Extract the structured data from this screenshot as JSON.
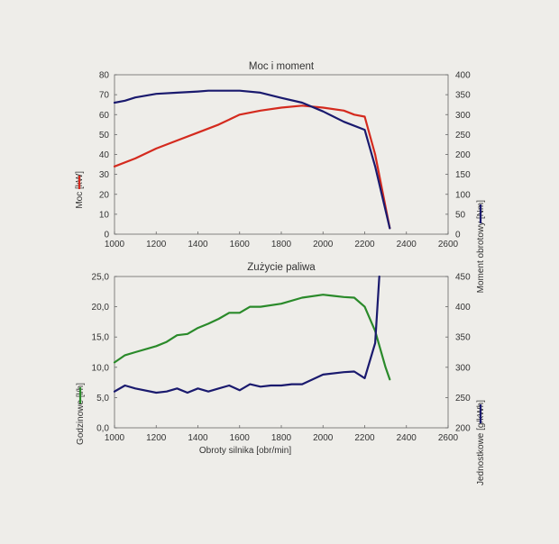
{
  "chart_data": [
    {
      "type": "line",
      "title": "Moc i moment",
      "xlabel": "",
      "ylabel_left": "Moc [kW]",
      "ylabel_right": "Moment obrotowy [Nm]",
      "xlim": [
        1000,
        2600
      ],
      "x_ticks": [
        1000,
        1200,
        1400,
        1600,
        1800,
        2000,
        2200,
        2400,
        2600
      ],
      "y_left_lim": [
        0,
        80
      ],
      "y_left_ticks": [
        0,
        10,
        20,
        30,
        40,
        50,
        60,
        70,
        80
      ],
      "y_right_lim": [
        0,
        400
      ],
      "y_right_ticks": [
        0,
        50,
        100,
        150,
        200,
        250,
        300,
        350,
        400
      ],
      "grid": false,
      "series": [
        {
          "axis": "left",
          "color": "#d42a1e",
          "points": [
            [
              1000,
              34
            ],
            [
              1100,
              38
            ],
            [
              1200,
              43
            ],
            [
              1300,
              47
            ],
            [
              1400,
              51
            ],
            [
              1500,
              55
            ],
            [
              1600,
              60
            ],
            [
              1700,
              62
            ],
            [
              1800,
              63.5
            ],
            [
              1900,
              64.5
            ],
            [
              2000,
              63.5
            ],
            [
              2100,
              62
            ],
            [
              2150,
              60
            ],
            [
              2200,
              59
            ],
            [
              2250,
              40
            ],
            [
              2320,
              3
            ]
          ]
        },
        {
          "axis": "right",
          "color": "#1a1a6e",
          "points": [
            [
              1000,
              330
            ],
            [
              1050,
              335
            ],
            [
              1100,
              343
            ],
            [
              1200,
              352
            ],
            [
              1300,
              355
            ],
            [
              1400,
              358
            ],
            [
              1450,
              360
            ],
            [
              1500,
              360
            ],
            [
              1600,
              360
            ],
            [
              1700,
              355
            ],
            [
              1800,
              342
            ],
            [
              1900,
              330
            ],
            [
              2000,
              308
            ],
            [
              2100,
              282
            ],
            [
              2200,
              262
            ],
            [
              2250,
              170
            ],
            [
              2320,
              15
            ]
          ]
        }
      ]
    },
    {
      "type": "line",
      "title": "Zużycie paliwa",
      "xlabel": "Obroty silnika [obr/min]",
      "ylabel_left": "Godzinowe [l/h]",
      "ylabel_right": "Jednostkowe [g/kWh]",
      "xlim": [
        1000,
        2600
      ],
      "x_ticks": [
        1000,
        1200,
        1400,
        1600,
        1800,
        2000,
        2200,
        2400,
        2600
      ],
      "y_left_lim": [
        0,
        25
      ],
      "y_left_ticks": [
        "0,0",
        "5,0",
        "10,0",
        "15,0",
        "20,0",
        "25,0"
      ],
      "y_right_lim": [
        200,
        450
      ],
      "y_right_ticks": [
        200,
        250,
        300,
        350,
        400,
        450
      ],
      "grid": false,
      "series": [
        {
          "axis": "left",
          "color": "#2a8a2a",
          "points": [
            [
              1000,
              10.8
            ],
            [
              1050,
              12
            ],
            [
              1100,
              12.5
            ],
            [
              1200,
              13.5
            ],
            [
              1250,
              14.2
            ],
            [
              1300,
              15.3
            ],
            [
              1350,
              15.5
            ],
            [
              1400,
              16.5
            ],
            [
              1450,
              17.2
            ],
            [
              1500,
              18
            ],
            [
              1550,
              19
            ],
            [
              1600,
              19
            ],
            [
              1650,
              20
            ],
            [
              1700,
              20
            ],
            [
              1800,
              20.5
            ],
            [
              1900,
              21.5
            ],
            [
              2000,
              22
            ],
            [
              2050,
              21.8
            ],
            [
              2100,
              21.6
            ],
            [
              2150,
              21.5
            ],
            [
              2200,
              20
            ],
            [
              2250,
              16
            ],
            [
              2300,
              10
            ],
            [
              2320,
              8
            ]
          ]
        },
        {
          "axis": "right",
          "color": "#1a1a6e",
          "points": [
            [
              1000,
              260
            ],
            [
              1050,
              270
            ],
            [
              1100,
              265
            ],
            [
              1200,
              258
            ],
            [
              1250,
              260
            ],
            [
              1300,
              265
            ],
            [
              1350,
              258
            ],
            [
              1400,
              265
            ],
            [
              1450,
              260
            ],
            [
              1500,
              265
            ],
            [
              1550,
              270
            ],
            [
              1600,
              262
            ],
            [
              1650,
              272
            ],
            [
              1700,
              268
            ],
            [
              1750,
              270
            ],
            [
              1800,
              270
            ],
            [
              1850,
              272
            ],
            [
              1900,
              272
            ],
            [
              1950,
              280
            ],
            [
              2000,
              288
            ],
            [
              2100,
              292
            ],
            [
              2150,
              293
            ],
            [
              2200,
              282
            ],
            [
              2250,
              340
            ],
            [
              2270,
              450
            ]
          ]
        }
      ]
    }
  ]
}
